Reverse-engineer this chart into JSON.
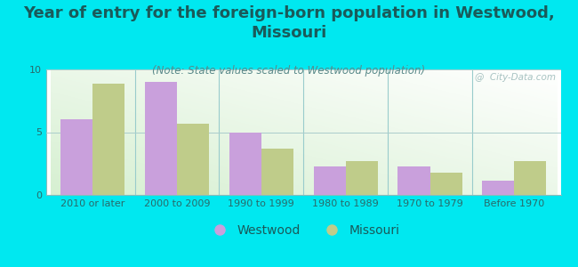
{
  "title": "Year of entry for the foreign-born population in Westwood,\nMissouri",
  "subtitle": "(Note: State values scaled to Westwood population)",
  "categories": [
    "2010 or later",
    "2000 to 2009",
    "1990 to 1999",
    "1980 to 1989",
    "1970 to 1979",
    "Before 1970"
  ],
  "westwood_values": [
    6.0,
    9.0,
    5.0,
    2.3,
    2.3,
    1.1
  ],
  "missouri_values": [
    8.9,
    5.7,
    3.7,
    2.7,
    1.8,
    2.7
  ],
  "westwood_color": "#c9a0dc",
  "missouri_color": "#bfcc8a",
  "ylim": [
    0,
    10
  ],
  "yticks": [
    0,
    5,
    10
  ],
  "bar_width": 0.38,
  "background_color": "#00e8f0",
  "title_color": "#1a5a5a",
  "subtitle_color": "#5a8a8a",
  "tick_color": "#2a6a6a",
  "title_fontsize": 13,
  "subtitle_fontsize": 8.5,
  "tick_fontsize": 8,
  "legend_fontsize": 10,
  "watermark": "@  City-Data.com"
}
